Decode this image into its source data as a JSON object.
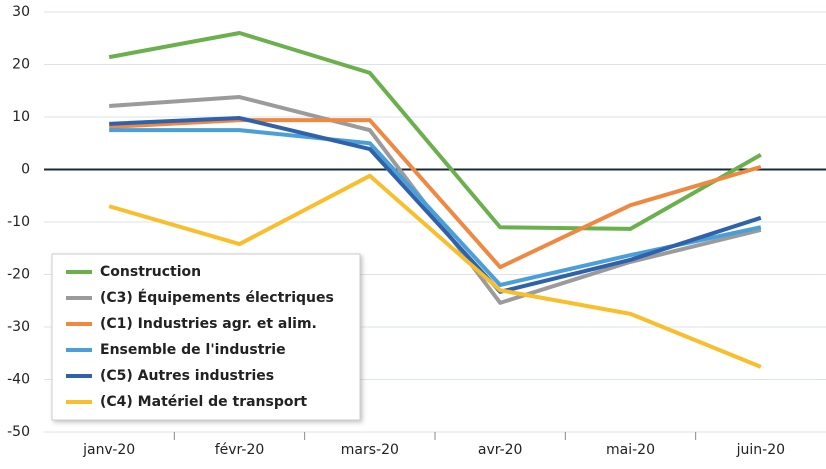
{
  "chart_data": {
    "type": "line",
    "categories": [
      "janv-20",
      "févr-20",
      "mars-20",
      "avr-20",
      "mai-20",
      "juin-20"
    ],
    "series": [
      {
        "name": "Construction",
        "color": "#6ab04c",
        "values": [
          21.4,
          26,
          18.4,
          -11,
          -11.3,
          2.8
        ]
      },
      {
        "name": "(C3) Équipements électriques",
        "color": "#9b9b9b",
        "values": [
          12.1,
          13.8,
          7.5,
          -25.4,
          -17.6,
          -11.5
        ]
      },
      {
        "name": "(C1) Industries agr. et alim.",
        "color": "#ef8840",
        "values": [
          8.1,
          9.4,
          9.4,
          -18.6,
          -6.8,
          0.5
        ]
      },
      {
        "name": "Ensemble de l'industrie",
        "color": "#4b9fd8",
        "values": [
          7.5,
          7.5,
          5,
          -22,
          -16.3,
          -11
        ]
      },
      {
        "name": "(C5) Autres industries",
        "color": "#2f62aa",
        "values": [
          8.7,
          9.8,
          3.9,
          -23.3,
          -17.2,
          -9.2
        ]
      },
      {
        "name": "(C4) Matériel de transport",
        "color": "#f8be2c",
        "values": [
          -7,
          -14.2,
          -1.2,
          -23,
          -27.5,
          -37.6
        ]
      }
    ],
    "ylim": [
      -50,
      30
    ],
    "yticks": [
      -50,
      -40,
      -30,
      -20,
      -10,
      0,
      10,
      20,
      30
    ],
    "grid": true,
    "legend": "bottom-left"
  }
}
